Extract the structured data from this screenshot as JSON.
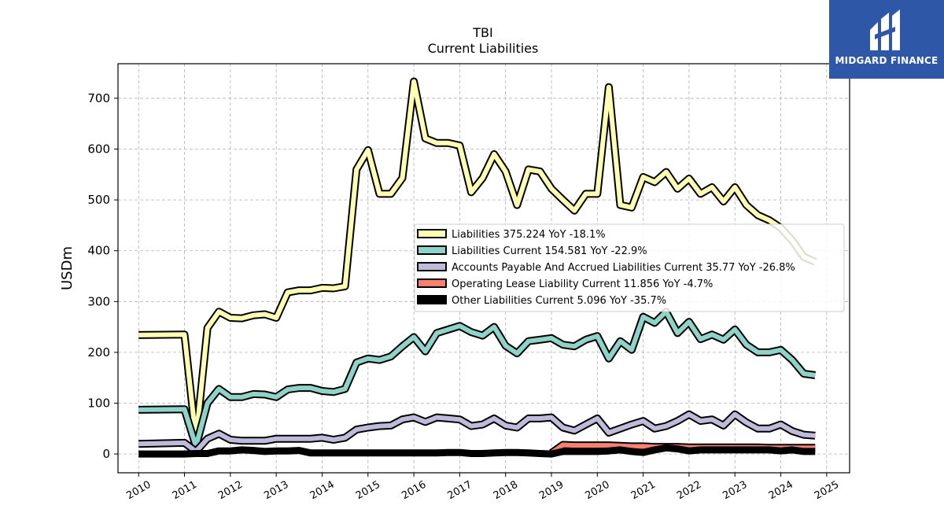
{
  "logo": {
    "text": "MIDGARD FINANCE",
    "bg_color": "#2f57a8"
  },
  "chart_data": {
    "type": "line",
    "title": "TBI",
    "subtitle": "Current  Liabilities",
    "xlabel": "",
    "ylabel": "USDm",
    "xlim": [
      2009.55,
      2025.5
    ],
    "ylim": [
      -37,
      768
    ],
    "yticks": [
      0,
      100,
      200,
      300,
      400,
      500,
      600,
      700
    ],
    "xticks": [
      2010,
      2011,
      2012,
      2013,
      2014,
      2015,
      2016,
      2017,
      2018,
      2019,
      2020,
      2021,
      2022,
      2023,
      2024,
      2025
    ],
    "grid": true,
    "legend_position": "center-right",
    "series": [
      {
        "name": "Liabilities",
        "legend": "Liabilities  375.224 YoY -18.1%",
        "color": "#ffffb3",
        "x": [
          2010.0,
          2011.0,
          2011.25,
          2011.5,
          2011.75,
          2012.0,
          2012.25,
          2012.5,
          2012.75,
          2013.0,
          2013.25,
          2013.5,
          2013.75,
          2014.0,
          2014.25,
          2014.5,
          2014.75,
          2015.0,
          2015.25,
          2015.5,
          2015.75,
          2016.0,
          2016.25,
          2016.5,
          2016.75,
          2017.0,
          2017.25,
          2017.5,
          2017.75,
          2018.0,
          2018.25,
          2018.5,
          2018.75,
          2019.0,
          2019.25,
          2019.5,
          2019.75,
          2020.0,
          2020.25,
          2020.5,
          2020.75,
          2021.0,
          2021.25,
          2021.5,
          2021.75,
          2022.0,
          2022.25,
          2022.5,
          2022.75,
          2023.0,
          2023.25,
          2023.5,
          2023.75,
          2024.0,
          2024.25,
          2024.5,
          2024.75
        ],
        "y": [
          234,
          235,
          28,
          248,
          280,
          268,
          267,
          273,
          275,
          268,
          318,
          322,
          322,
          327,
          326,
          330,
          560,
          598,
          512,
          512,
          543,
          733,
          621,
          612,
          612,
          607,
          515,
          543,
          590,
          556,
          490,
          560,
          556,
          522,
          500,
          479,
          512,
          512,
          722,
          490,
          485,
          545,
          535,
          555,
          522,
          542,
          512,
          525,
          497,
          525,
          490,
          470,
          460,
          445,
          420,
          388,
          378
        ]
      },
      {
        "name": "Liabilities Current",
        "legend": "Liabilities Current  154.581 YoY -22.9%",
        "color": "#8dd3c7",
        "x": [
          2010.0,
          2011.0,
          2011.25,
          2011.5,
          2011.75,
          2012.0,
          2012.25,
          2012.5,
          2012.75,
          2013.0,
          2013.25,
          2013.5,
          2013.75,
          2014.0,
          2014.25,
          2014.5,
          2014.75,
          2015.0,
          2015.25,
          2015.5,
          2015.75,
          2016.0,
          2016.25,
          2016.5,
          2016.75,
          2017.0,
          2017.25,
          2017.5,
          2017.75,
          2018.0,
          2018.25,
          2018.5,
          2018.75,
          2019.0,
          2019.25,
          2019.5,
          2019.75,
          2020.0,
          2020.25,
          2020.5,
          2020.75,
          2021.0,
          2021.25,
          2021.5,
          2021.75,
          2022.0,
          2022.25,
          2022.5,
          2022.75,
          2023.0,
          2023.25,
          2023.5,
          2023.75,
          2024.0,
          2024.25,
          2024.5,
          2024.75
        ],
        "y": [
          87,
          88,
          15,
          100,
          128,
          112,
          112,
          118,
          117,
          112,
          127,
          130,
          130,
          124,
          122,
          128,
          180,
          188,
          185,
          192,
          212,
          230,
          202,
          238,
          245,
          252,
          240,
          233,
          250,
          213,
          198,
          222,
          225,
          228,
          215,
          212,
          225,
          232,
          188,
          222,
          205,
          270,
          258,
          280,
          238,
          260,
          226,
          235,
          225,
          245,
          215,
          200,
          200,
          205,
          185,
          158,
          155
        ]
      },
      {
        "name": "Accounts Payable And Accrued Liabilities Current",
        "legend": "Accounts Payable And Accrued Liabilities Current  35.77 YoY -26.8%",
        "color": "#bebada",
        "x": [
          2010.0,
          2011.0,
          2011.25,
          2011.5,
          2011.75,
          2012.0,
          2012.25,
          2012.5,
          2012.75,
          2013.0,
          2013.25,
          2013.5,
          2013.75,
          2014.0,
          2014.25,
          2014.5,
          2014.75,
          2015.0,
          2015.25,
          2015.5,
          2015.75,
          2016.0,
          2016.25,
          2016.5,
          2016.75,
          2017.0,
          2017.25,
          2017.5,
          2017.75,
          2018.0,
          2018.25,
          2018.5,
          2018.75,
          2019.0,
          2019.25,
          2019.5,
          2019.75,
          2020.0,
          2020.25,
          2020.5,
          2020.75,
          2021.0,
          2021.25,
          2021.5,
          2021.75,
          2022.0,
          2022.25,
          2022.5,
          2022.75,
          2023.0,
          2023.25,
          2023.5,
          2023.75,
          2024.0,
          2024.25,
          2024.5,
          2024.75
        ],
        "y": [
          20,
          22,
          5,
          30,
          40,
          28,
          26,
          26,
          26,
          30,
          30,
          30,
          30,
          32,
          28,
          32,
          48,
          52,
          55,
          56,
          68,
          72,
          63,
          72,
          70,
          68,
          55,
          58,
          70,
          56,
          52,
          70,
          70,
          72,
          52,
          46,
          58,
          70,
          42,
          50,
          58,
          65,
          50,
          55,
          65,
          78,
          65,
          68,
          56,
          78,
          62,
          50,
          50,
          58,
          45,
          38,
          36
        ]
      },
      {
        "name": "Operating Lease Liability Current",
        "legend": "Operating Lease Liability Current  11.856 YoY -4.7%",
        "color": "#fb8072",
        "x": [
          2019.0,
          2019.25,
          2019.5,
          2019.75,
          2020.0,
          2020.25,
          2020.5,
          2020.75,
          2021.0,
          2021.25,
          2021.5,
          2021.75,
          2022.0,
          2022.25,
          2022.5,
          2022.75,
          2023.0,
          2023.25,
          2023.5,
          2023.75,
          2024.0,
          2024.25,
          2024.5,
          2024.75
        ],
        "y": [
          2,
          18,
          17,
          17,
          17,
          17,
          16,
          15,
          15,
          14,
          14,
          14,
          13,
          13,
          13,
          13,
          13,
          13,
          13,
          12,
          12,
          12,
          12,
          12
        ]
      },
      {
        "name": "Other Liabilities Current",
        "legend": "Other Liabilities Current  5.096 YoY -35.7%",
        "color": "#000000",
        "x": [
          2010.0,
          2011.0,
          2011.25,
          2011.5,
          2011.75,
          2012.0,
          2012.25,
          2012.5,
          2012.75,
          2013.0,
          2013.25,
          2013.5,
          2013.75,
          2014.0,
          2014.25,
          2014.5,
          2014.75,
          2015.0,
          2015.25,
          2015.5,
          2015.75,
          2016.0,
          2016.25,
          2016.5,
          2016.75,
          2017.0,
          2017.25,
          2017.5,
          2017.75,
          2018.0,
          2018.25,
          2018.5,
          2018.75,
          2019.0,
          2019.25,
          2019.5,
          2019.75,
          2020.0,
          2020.25,
          2020.5,
          2020.75,
          2021.0,
          2021.25,
          2021.5,
          2021.75,
          2022.0,
          2022.25,
          2022.5,
          2022.75,
          2023.0,
          2023.25,
          2023.5,
          2023.75,
          2024.0,
          2024.25,
          2024.5,
          2024.75
        ],
        "y": [
          0,
          0,
          1,
          1,
          6,
          6,
          8,
          7,
          5,
          6,
          6,
          7,
          2,
          2,
          2,
          2,
          2,
          2,
          2,
          2,
          2,
          2,
          2,
          2,
          3,
          3,
          1,
          1,
          2,
          3,
          3,
          2,
          1,
          0,
          5,
          5,
          5,
          5,
          6,
          8,
          5,
          3,
          8,
          12,
          10,
          6,
          8,
          8,
          8,
          8,
          8,
          8,
          8,
          6,
          8,
          5,
          5
        ]
      }
    ]
  }
}
